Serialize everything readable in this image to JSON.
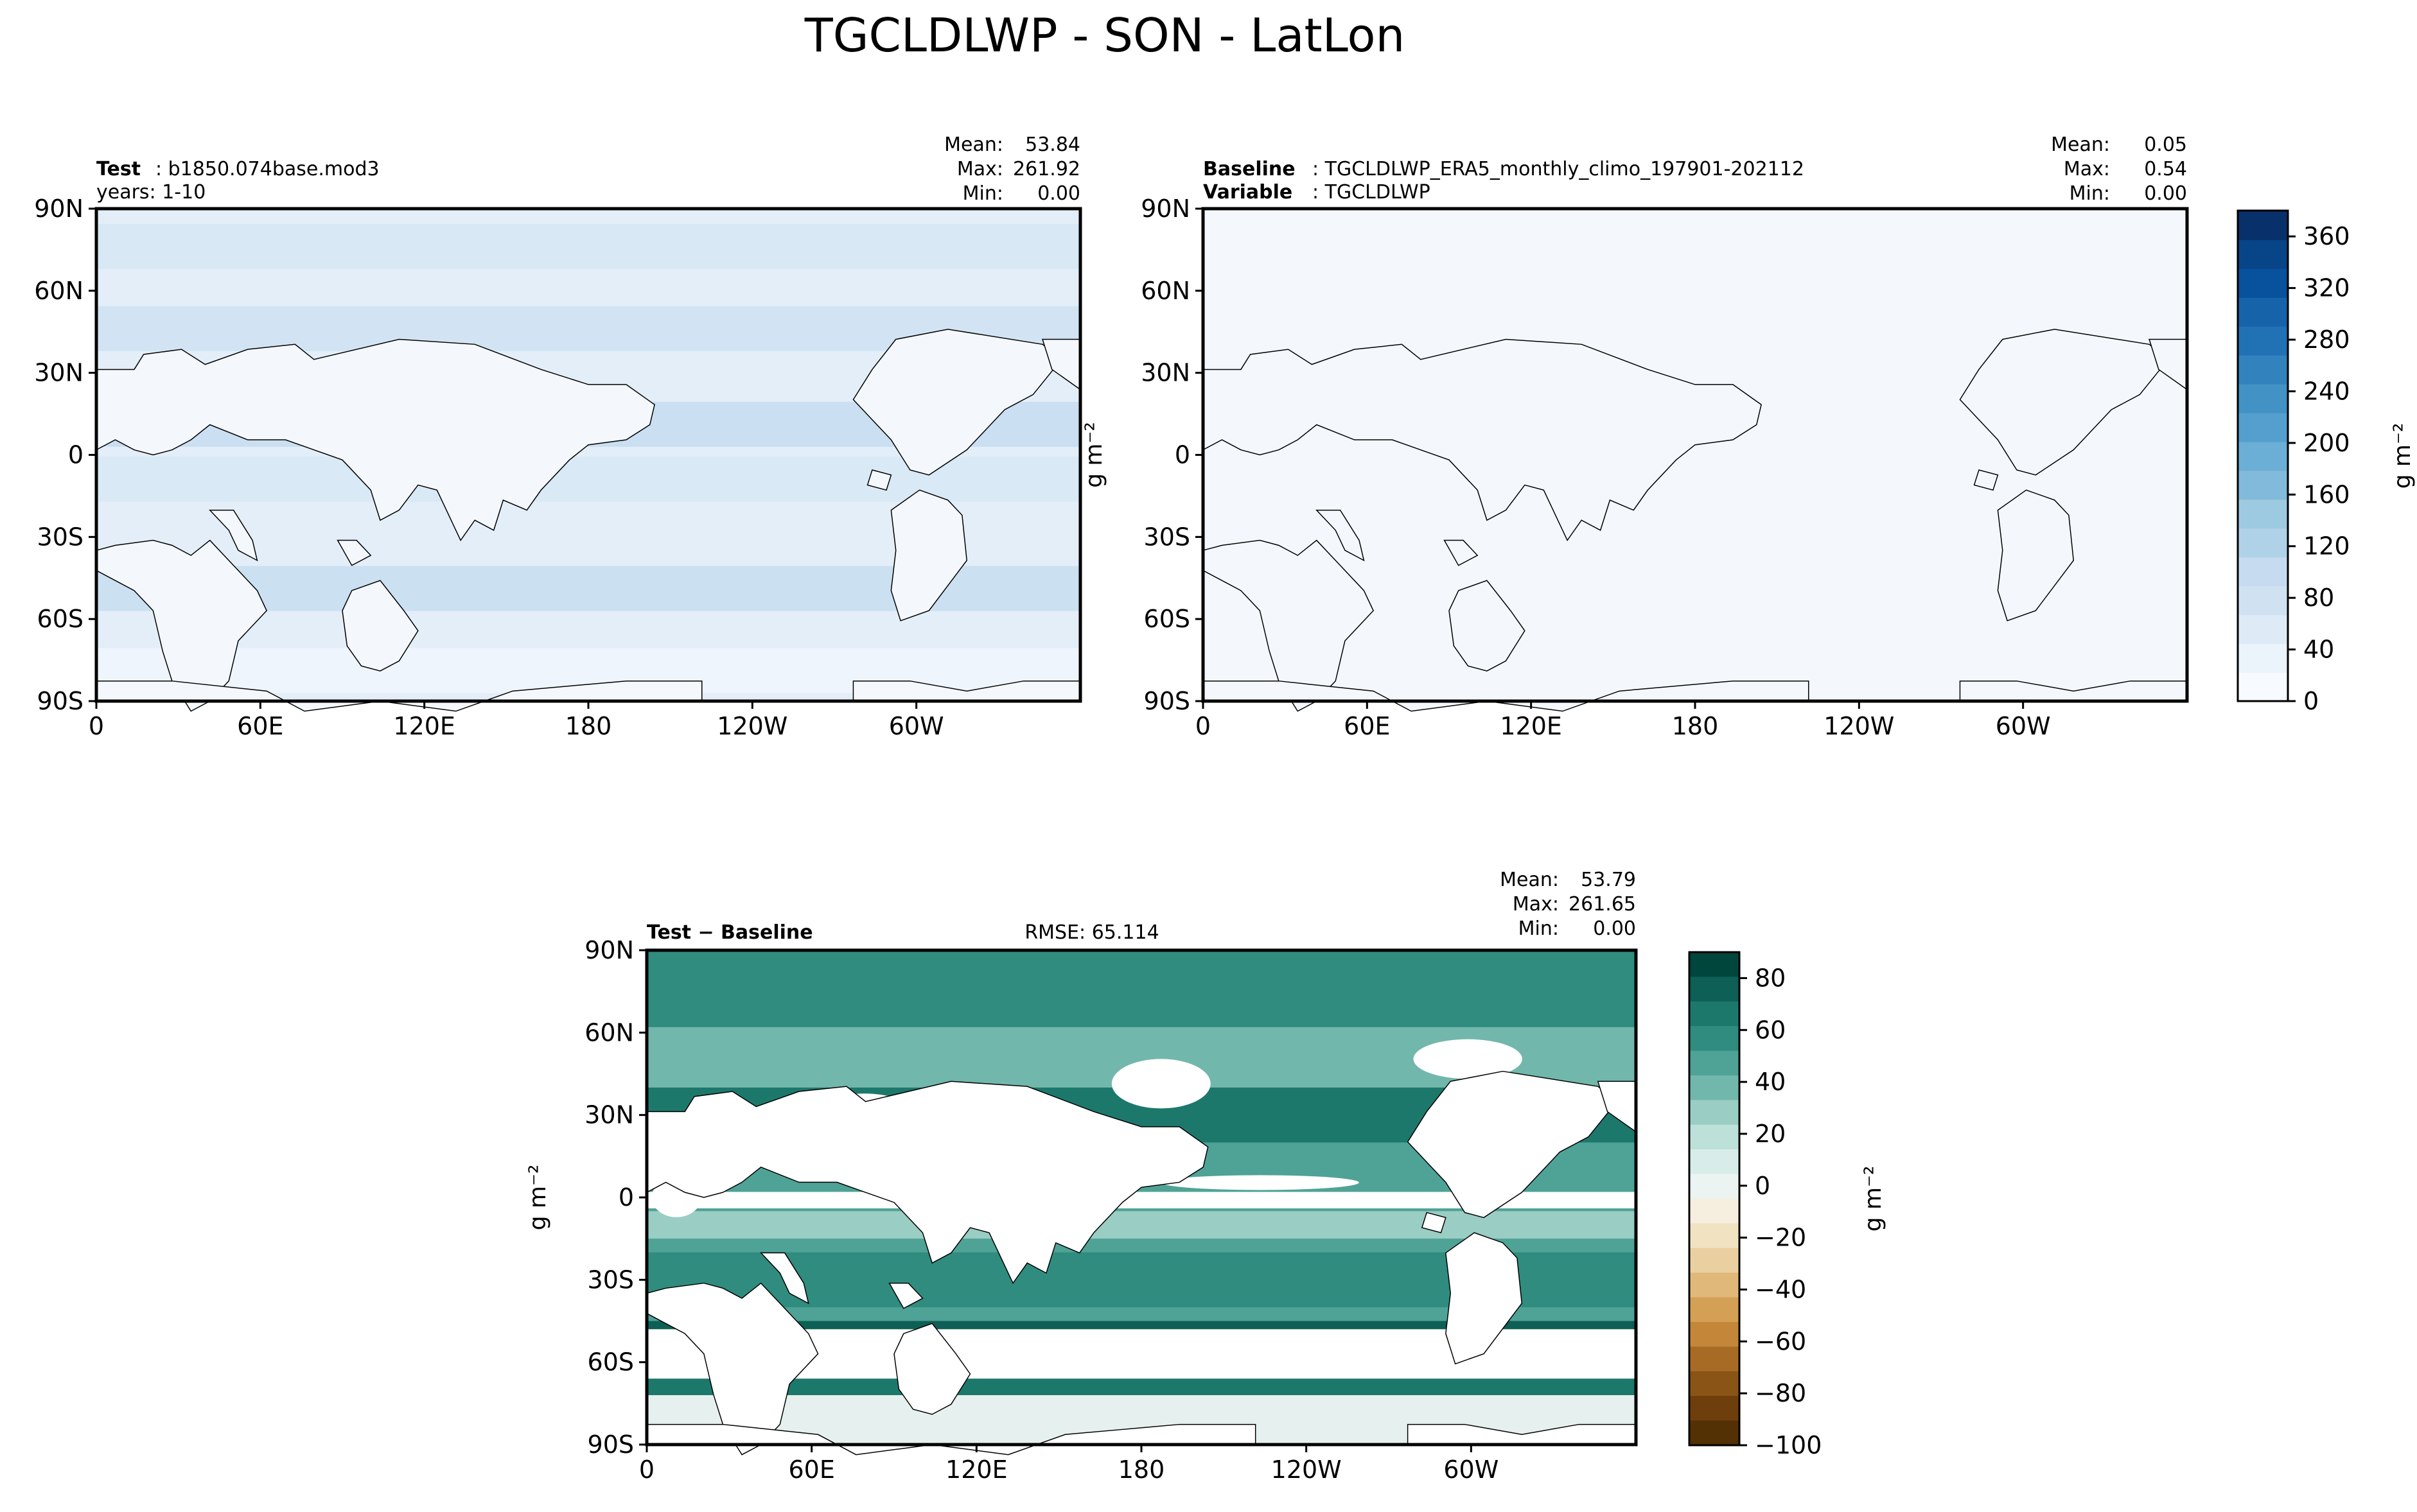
{
  "figure": {
    "title": "TGCLDLWP - SON - LatLon"
  },
  "chart_data": [
    {
      "type": "heatmap",
      "panel": "test",
      "left_label": "Test",
      "left_value": "b1850.074base.mod3",
      "left_line2": "years: 1-10",
      "stats": [
        {
          "label": "Mean:",
          "value": "53.84"
        },
        {
          "label": "Max:",
          "value": "261.92"
        },
        {
          "label": "Min:",
          "value": "0.00"
        }
      ],
      "map": "latlon",
      "colormap": "Blues",
      "xticks": [
        "0",
        "60E",
        "120E",
        "180",
        "120W",
        "60W"
      ],
      "yticks": [
        "90N",
        "60N",
        "30N",
        "0",
        "30S",
        "60S",
        "90S"
      ],
      "ylabel": ""
    },
    {
      "type": "heatmap",
      "panel": "baseline",
      "left_label": "Baseline",
      "left_value": "TGCLDLWP_ERA5_monthly_climo_197901-202112",
      "left_label2": "Variable",
      "left_value2": "TGCLDLWP",
      "stats": [
        {
          "label": "Mean:",
          "value": "0.05"
        },
        {
          "label": "Max:",
          "value": "0.54"
        },
        {
          "label": "Min:",
          "value": "0.00"
        }
      ],
      "map": "latlon",
      "colormap": "Blues",
      "xticks": [
        "0",
        "60E",
        "120E",
        "180",
        "120W",
        "60W"
      ],
      "yticks": [
        "90N",
        "60N",
        "30N",
        "0",
        "30S",
        "60S",
        "90S"
      ],
      "ylabel": "g m⁻²",
      "colorbar": {
        "ticks": [
          "0",
          "40",
          "80",
          "120",
          "160",
          "200",
          "240",
          "280",
          "320",
          "360"
        ],
        "range": [
          0,
          380
        ],
        "label": "g m⁻²",
        "colors": [
          "#f7fbff",
          "#ebf3fb",
          "#deebf7",
          "#d0e2f2",
          "#c6dbef",
          "#b0d2e8",
          "#9ecae1",
          "#82badb",
          "#6baed6",
          "#549fcd",
          "#4292c6",
          "#3282be",
          "#2171b5",
          "#1763aa",
          "#08519c",
          "#084488",
          "#08306b"
        ]
      }
    },
    {
      "type": "heatmap",
      "panel": "diff",
      "left_label": "Test − Baseline",
      "center_text": "RMSE: 65.114",
      "stats": [
        {
          "label": "Mean:",
          "value": "53.79"
        },
        {
          "label": "Max:",
          "value": "261.65"
        },
        {
          "label": "Min:",
          "value": "0.00"
        }
      ],
      "map": "latlon",
      "colormap": "BrBG",
      "xticks": [
        "0",
        "60E",
        "120E",
        "180",
        "120W",
        "60W"
      ],
      "yticks": [
        "90N",
        "60N",
        "30N",
        "0",
        "30S",
        "60S",
        "90S"
      ],
      "ylabel": "g m⁻²",
      "colorbar": {
        "ticks": [
          "80",
          "60",
          "40",
          "20",
          "0",
          "−20",
          "−40",
          "−60",
          "−80",
          "−100"
        ],
        "range": [
          -100,
          90
        ],
        "label": "g m⁻²",
        "colors_top_to_bottom": [
          "#01463c",
          "#0e5f55",
          "#1d786c",
          "#2f8c7f",
          "#4fa296",
          "#72b7ab",
          "#9acdc3",
          "#bde0d9",
          "#d8ede9",
          "#ecf4f2",
          "#f6efdf",
          "#f1e2c2",
          "#ead0a0",
          "#e0b97a",
          "#d3a055",
          "#c4873a",
          "#a76b25",
          "#8a5416",
          "#6e3f0c",
          "#543005"
        ]
      }
    }
  ]
}
